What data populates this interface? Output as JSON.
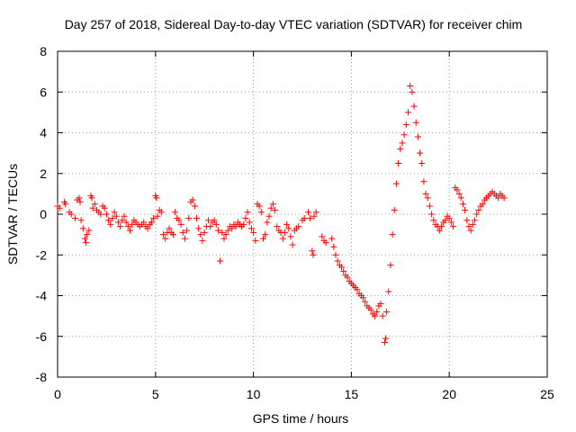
{
  "chart_data": {
    "type": "scatter",
    "title": "Day 257 of 2018, Sidereal Day-to-day VTEC variation (SDTVAR) for receiver chim",
    "xlabel": "GPS time / hours",
    "ylabel": "SDTVAR / TECUs",
    "xlim": [
      0,
      25
    ],
    "ylim": [
      -8,
      8
    ],
    "xticks": [
      0,
      5,
      10,
      15,
      20,
      25
    ],
    "xtick_labels": [
      "0",
      "5",
      "10",
      "15",
      "20",
      "25"
    ],
    "yticks": [
      -8,
      -6,
      -4,
      -2,
      0,
      2,
      4,
      6,
      8
    ],
    "ytick_labels": [
      "-8",
      "-6",
      "-4",
      "-2",
      "0",
      "2",
      "4",
      "6",
      "8"
    ],
    "grid": true,
    "marker": "+",
    "color": "#ff0000",
    "series": [
      {
        "name": "SDTVAR",
        "points": [
          [
            0.0,
            0.4
          ],
          [
            0.1,
            0.3
          ],
          [
            0.35,
            0.6
          ],
          [
            0.4,
            0.5
          ],
          [
            0.6,
            0.1
          ],
          [
            0.7,
            0.0
          ],
          [
            0.9,
            -0.2
          ],
          [
            1.0,
            0.7
          ],
          [
            1.1,
            0.8
          ],
          [
            1.15,
            0.6
          ],
          [
            1.2,
            -0.3
          ],
          [
            1.3,
            -0.7
          ],
          [
            1.4,
            -1.2
          ],
          [
            1.45,
            -1.4
          ],
          [
            1.5,
            -1.0
          ],
          [
            1.6,
            -0.8
          ],
          [
            1.7,
            0.9
          ],
          [
            1.75,
            0.8
          ],
          [
            1.8,
            0.3
          ],
          [
            1.9,
            0.5
          ],
          [
            2.0,
            0.2
          ],
          [
            2.1,
            0.1
          ],
          [
            2.2,
            0.0
          ],
          [
            2.3,
            0.4
          ],
          [
            2.4,
            0.3
          ],
          [
            2.5,
            0.0
          ],
          [
            2.6,
            -0.3
          ],
          [
            2.7,
            -0.5
          ],
          [
            2.8,
            -0.2
          ],
          [
            2.9,
            0.1
          ],
          [
            3.0,
            -0.1
          ],
          [
            3.1,
            -0.4
          ],
          [
            3.2,
            -0.6
          ],
          [
            3.3,
            -0.3
          ],
          [
            3.4,
            -0.1
          ],
          [
            3.5,
            -0.4
          ],
          [
            3.6,
            -0.6
          ],
          [
            3.7,
            -0.8
          ],
          [
            3.8,
            -0.5
          ],
          [
            3.9,
            -0.3
          ],
          [
            4.0,
            -0.4
          ],
          [
            4.1,
            -0.5
          ],
          [
            4.2,
            -0.6
          ],
          [
            4.3,
            -0.5
          ],
          [
            4.4,
            -0.4
          ],
          [
            4.5,
            -0.6
          ],
          [
            4.6,
            -0.7
          ],
          [
            4.7,
            -0.5
          ],
          [
            4.8,
            -0.4
          ],
          [
            4.9,
            -0.2
          ],
          [
            5.0,
            0.9
          ],
          [
            5.05,
            0.8
          ],
          [
            5.1,
            -0.1
          ],
          [
            5.2,
            0.2
          ],
          [
            5.3,
            0.1
          ],
          [
            5.4,
            -1.0
          ],
          [
            5.5,
            -1.2
          ],
          [
            5.6,
            -0.9
          ],
          [
            5.7,
            -0.7
          ],
          [
            5.8,
            -0.9
          ],
          [
            5.9,
            -1.0
          ],
          [
            6.0,
            0.1
          ],
          [
            6.1,
            -0.2
          ],
          [
            6.2,
            -0.3
          ],
          [
            6.3,
            -0.5
          ],
          [
            6.4,
            -0.9
          ],
          [
            6.5,
            -1.2
          ],
          [
            6.6,
            -0.8
          ],
          [
            6.7,
            -0.2
          ],
          [
            6.8,
            0.6
          ],
          [
            6.9,
            0.7
          ],
          [
            7.0,
            0.4
          ],
          [
            7.1,
            -0.2
          ],
          [
            7.2,
            -0.7
          ],
          [
            7.3,
            -1.0
          ],
          [
            7.4,
            -1.3
          ],
          [
            7.5,
            -0.9
          ],
          [
            7.6,
            -0.6
          ],
          [
            7.7,
            -0.3
          ],
          [
            7.8,
            -0.6
          ],
          [
            7.9,
            -0.4
          ],
          [
            8.0,
            -0.3
          ],
          [
            8.1,
            -0.5
          ],
          [
            8.2,
            -0.8
          ],
          [
            8.3,
            -2.3
          ],
          [
            8.4,
            -0.9
          ],
          [
            8.5,
            -1.2
          ],
          [
            8.6,
            -1.0
          ],
          [
            8.7,
            -0.8
          ],
          [
            8.8,
            -0.6
          ],
          [
            8.9,
            -0.7
          ],
          [
            9.0,
            -0.5
          ],
          [
            9.1,
            -0.6
          ],
          [
            9.2,
            -0.4
          ],
          [
            9.3,
            -0.5
          ],
          [
            9.4,
            -0.6
          ],
          [
            9.5,
            -0.5
          ],
          [
            9.6,
            -0.2
          ],
          [
            9.7,
            0.1
          ],
          [
            9.8,
            -0.4
          ],
          [
            9.9,
            -0.7
          ],
          [
            10.0,
            -0.9
          ],
          [
            10.1,
            -1.3
          ],
          [
            10.2,
            0.5
          ],
          [
            10.3,
            0.4
          ],
          [
            10.4,
            0.1
          ],
          [
            10.5,
            -1.2
          ],
          [
            10.6,
            -1.0
          ],
          [
            10.7,
            -0.4
          ],
          [
            10.8,
            -0.1
          ],
          [
            10.9,
            0.3
          ],
          [
            11.0,
            0.5
          ],
          [
            11.1,
            0.2
          ],
          [
            11.2,
            -0.6
          ],
          [
            11.3,
            -0.8
          ],
          [
            11.4,
            -0.9
          ],
          [
            11.5,
            -1.2
          ],
          [
            11.6,
            -0.9
          ],
          [
            11.7,
            -0.5
          ],
          [
            11.8,
            -0.7
          ],
          [
            11.9,
            -1.1
          ],
          [
            12.0,
            -1.5
          ],
          [
            12.1,
            -0.8
          ],
          [
            12.2,
            -0.7
          ],
          [
            12.3,
            -0.6
          ],
          [
            12.5,
            -0.3
          ],
          [
            12.6,
            -0.2
          ],
          [
            12.8,
            0.1
          ],
          [
            12.9,
            -0.2
          ],
          [
            13.0,
            -1.8
          ],
          [
            13.05,
            -2.0
          ],
          [
            13.1,
            -0.1
          ],
          [
            13.2,
            0.1
          ],
          [
            13.5,
            -1.1
          ],
          [
            13.6,
            -1.3
          ],
          [
            13.7,
            -1.4
          ],
          [
            14.0,
            -1.2
          ],
          [
            14.1,
            -1.6
          ],
          [
            14.2,
            -2.0
          ],
          [
            14.3,
            -2.3
          ],
          [
            14.4,
            -2.5
          ],
          [
            14.5,
            -2.6
          ],
          [
            14.6,
            -2.8
          ],
          [
            14.7,
            -3.0
          ],
          [
            14.8,
            -3.1
          ],
          [
            14.9,
            -3.3
          ],
          [
            15.0,
            -3.4
          ],
          [
            15.1,
            -3.5
          ],
          [
            15.2,
            -3.6
          ],
          [
            15.3,
            -3.7
          ],
          [
            15.4,
            -3.9
          ],
          [
            15.5,
            -4.0
          ],
          [
            15.6,
            -4.1
          ],
          [
            15.7,
            -4.3
          ],
          [
            15.8,
            -4.5
          ],
          [
            15.9,
            -4.6
          ],
          [
            16.0,
            -4.7
          ],
          [
            16.1,
            -4.9
          ],
          [
            16.2,
            -5.0
          ],
          [
            16.3,
            -4.8
          ],
          [
            16.4,
            -4.5
          ],
          [
            16.5,
            -4.4
          ],
          [
            16.6,
            -5.0
          ],
          [
            16.7,
            -6.3
          ],
          [
            16.75,
            -6.1
          ],
          [
            16.8,
            -4.8
          ],
          [
            16.9,
            -3.8
          ],
          [
            17.0,
            -2.5
          ],
          [
            17.1,
            -1.0
          ],
          [
            17.2,
            0.2
          ],
          [
            17.3,
            1.5
          ],
          [
            17.4,
            2.5
          ],
          [
            17.5,
            3.2
          ],
          [
            17.6,
            3.5
          ],
          [
            17.7,
            3.9
          ],
          [
            17.8,
            4.4
          ],
          [
            17.9,
            5.0
          ],
          [
            18.0,
            6.3
          ],
          [
            18.1,
            6.0
          ],
          [
            18.2,
            5.3
          ],
          [
            18.3,
            4.5
          ],
          [
            18.4,
            3.8
          ],
          [
            18.5,
            3.0
          ],
          [
            18.6,
            2.5
          ],
          [
            18.7,
            1.6
          ],
          [
            18.8,
            1.0
          ],
          [
            18.9,
            0.8
          ],
          [
            19.0,
            0.4
          ],
          [
            19.1,
            0.0
          ],
          [
            19.2,
            -0.3
          ],
          [
            19.3,
            -0.5
          ],
          [
            19.4,
            -0.6
          ],
          [
            19.5,
            -0.8
          ],
          [
            19.6,
            -0.6
          ],
          [
            19.7,
            -0.4
          ],
          [
            19.8,
            -0.3
          ],
          [
            19.9,
            -0.1
          ],
          [
            20.0,
            -0.2
          ],
          [
            20.1,
            -0.4
          ],
          [
            20.2,
            -0.6
          ],
          [
            20.3,
            1.3
          ],
          [
            20.4,
            1.2
          ],
          [
            20.5,
            1.0
          ],
          [
            20.6,
            0.8
          ],
          [
            20.7,
            0.5
          ],
          [
            20.8,
            0.2
          ],
          [
            20.9,
            -0.3
          ],
          [
            21.0,
            -0.6
          ],
          [
            21.1,
            -0.8
          ],
          [
            21.2,
            -0.5
          ],
          [
            21.3,
            -0.3
          ],
          [
            21.4,
            0.0
          ],
          [
            21.5,
            0.2
          ],
          [
            21.6,
            0.4
          ],
          [
            21.7,
            0.5
          ],
          [
            21.8,
            0.7
          ],
          [
            21.9,
            0.8
          ],
          [
            22.0,
            0.9
          ],
          [
            22.1,
            1.0
          ],
          [
            22.2,
            1.1
          ],
          [
            22.3,
            1.0
          ],
          [
            22.4,
            0.9
          ],
          [
            22.5,
            0.8
          ],
          [
            22.6,
            1.0
          ],
          [
            22.7,
            0.9
          ],
          [
            22.8,
            0.8
          ]
        ]
      }
    ]
  }
}
